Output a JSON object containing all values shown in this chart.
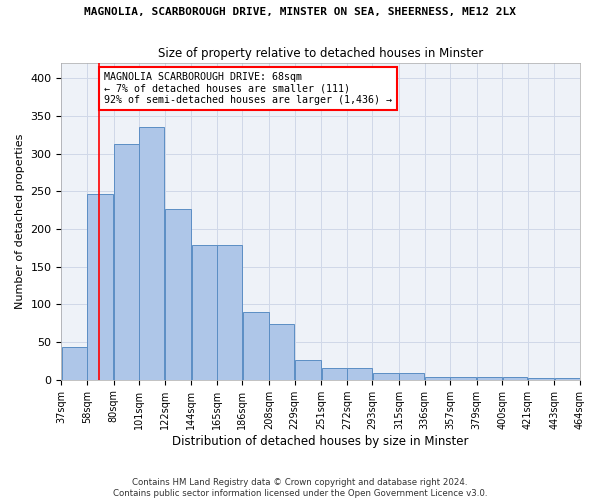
{
  "title": "MAGNOLIA, SCARBOROUGH DRIVE, MINSTER ON SEA, SHEERNESS, ME12 2LX",
  "subtitle": "Size of property relative to detached houses in Minster",
  "xlabel": "Distribution of detached houses by size in Minster",
  "ylabel": "Number of detached properties",
  "footnote1": "Contains HM Land Registry data © Crown copyright and database right 2024.",
  "footnote2": "Contains public sector information licensed under the Open Government Licence v3.0.",
  "annotation_line1": "MAGNOLIA SCARBOROUGH DRIVE: 68sqm",
  "annotation_line2": "← 7% of detached houses are smaller (111)",
  "annotation_line3": "92% of semi-detached houses are larger (1,436) →",
  "bar_left_edges": [
    37,
    58,
    80,
    101,
    122,
    144,
    165,
    186,
    208,
    229,
    251,
    272,
    293,
    315,
    336,
    357,
    379,
    400,
    421,
    443
  ],
  "bar_widths": [
    21,
    22,
    21,
    21,
    22,
    21,
    21,
    22,
    21,
    22,
    21,
    21,
    22,
    21,
    21,
    22,
    21,
    21,
    22,
    21
  ],
  "bar_heights": [
    44,
    246,
    313,
    335,
    226,
    179,
    179,
    90,
    74,
    26,
    15,
    15,
    9,
    9,
    4,
    4,
    4,
    4,
    2,
    2
  ],
  "bar_color": "#aec6e8",
  "bar_edge_color": "#5b8ec4",
  "red_line_x": 68,
  "ylim": [
    0,
    420
  ],
  "yticks": [
    0,
    50,
    100,
    150,
    200,
    250,
    300,
    350,
    400
  ],
  "xlim": [
    37,
    464
  ],
  "xtick_labels": [
    "37sqm",
    "58sqm",
    "80sqm",
    "101sqm",
    "122sqm",
    "144sqm",
    "165sqm",
    "186sqm",
    "208sqm",
    "229sqm",
    "251sqm",
    "272sqm",
    "293sqm",
    "315sqm",
    "336sqm",
    "357sqm",
    "379sqm",
    "400sqm",
    "421sqm",
    "443sqm",
    "464sqm"
  ],
  "xtick_positions": [
    37,
    58,
    80,
    101,
    122,
    144,
    165,
    186,
    208,
    229,
    251,
    272,
    293,
    315,
    336,
    357,
    379,
    400,
    421,
    443,
    464
  ],
  "grid_color": "#d0d8e8",
  "bg_color": "#eef2f8"
}
